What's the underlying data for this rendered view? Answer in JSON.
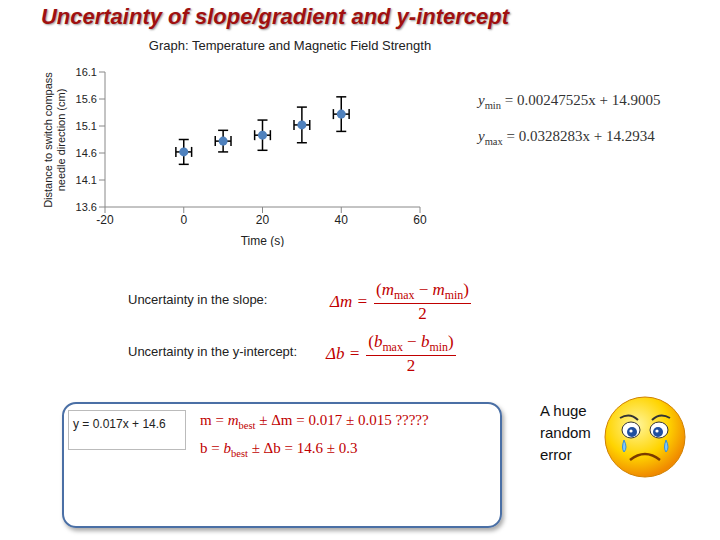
{
  "title": "Uncertainty of slope/gradient and y-intercept",
  "chart_data": {
    "type": "scatter",
    "title": "Graph: Temperature and Magnetic Field Strength",
    "x_label": "Time (s)",
    "y_label": "Distance to switch compass needle direction (cm)",
    "x": [
      0,
      10,
      20,
      30,
      40
    ],
    "values": [
      14.62,
      14.82,
      14.93,
      15.12,
      15.32
    ],
    "x_error": [
      2,
      2,
      2,
      2,
      2
    ],
    "y_error": [
      0.23,
      0.2,
      0.28,
      0.33,
      0.32
    ],
    "color": "#4f81bd",
    "marker": "circle",
    "xlim": [
      -20,
      60
    ],
    "xticks": [
      -20,
      0,
      20,
      40,
      60
    ],
    "ylim": [
      13.6,
      16.1
    ],
    "yticks": [
      13.6,
      14.1,
      14.6,
      15.1,
      15.6,
      16.1
    ],
    "grid": false
  },
  "fit_lines": [
    {
      "lhs": {
        "base": "y",
        "sub": "min"
      },
      "rhs": "= 0.00247525x + 14.9005"
    },
    {
      "lhs": {
        "base": "y",
        "sub": "max"
      },
      "rhs": "= 0.0328283x + 14.2934"
    }
  ],
  "slope_uncertainty": {
    "label": "Uncertainty in the slope:",
    "lhs": "Δm =",
    "numerator": [
      "(",
      {
        "base": "m",
        "sub": "max"
      },
      " − ",
      {
        "base": "m",
        "sub": "min"
      },
      ")"
    ],
    "denominator": "2"
  },
  "intercept_uncertainty": {
    "label": "Uncertainty in the y-intercept:",
    "lhs": "Δb =",
    "numerator": [
      "(",
      {
        "base": "b",
        "sub": "max"
      },
      " − ",
      {
        "base": "b",
        "sub": "min"
      },
      ")"
    ],
    "denominator": "2"
  },
  "result_box": {
    "best_fit": "y = 0.017x + 14.6",
    "lines": [
      [
        "m = ",
        {
          "base": "m",
          "sub": "best"
        },
        " ± Δm = 0.017 ± 0.015 ?????"
      ],
      [
        "b = ",
        {
          "base": "b",
          "sub": "best"
        },
        " ± Δb = 14.6 ± 0.3"
      ]
    ]
  },
  "note": "A huge random error"
}
